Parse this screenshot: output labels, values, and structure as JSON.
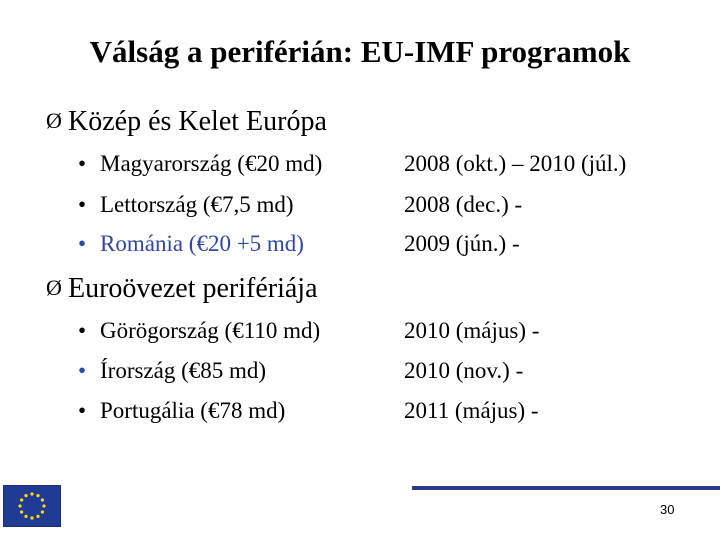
{
  "title": "Válság a periférián: EU-IMF programok",
  "sections": [
    {
      "heading": "Közép és Kelet Európa",
      "rows": [
        {
          "country": "Magyarország (€20 md)",
          "date": "2008 (okt.) – 2010 (júl.)"
        },
        {
          "country": "Lettország (€7,5 md)",
          "date": "2008 (dec.) -"
        },
        {
          "country": "Románia (€20 +5 md)",
          "date": "2009 (jún.) -"
        }
      ]
    },
    {
      "heading": "Euroövezet perifériája",
      "rows": [
        {
          "country": "Görögország (€110 md)",
          "date": "2010 (május) -"
        },
        {
          "country": "Írország (€85 md)",
          "date": "2010 (nov.) -"
        },
        {
          "country": "Portugália (€78 md)",
          "date": "2011 (május) -"
        }
      ]
    }
  ],
  "bullet_glyph": "•",
  "arrow_glyph": "Ø",
  "page_number": "30",
  "colors": {
    "highlight_text": "#2f46a8",
    "footer_line": "#2e3a8c",
    "eu_flag_blue": "#1f3b94",
    "eu_flag_stars": "#ffdd00"
  },
  "icons": {
    "section_bullet": "arrow-bullet-icon",
    "eu_flag": "eu-flag-icon"
  }
}
